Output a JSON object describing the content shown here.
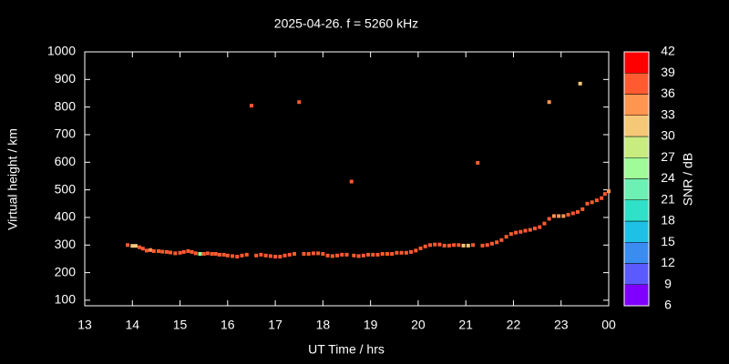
{
  "chart_data": {
    "type": "scatter",
    "title": "2025-04-26. f = 5260 kHz",
    "x_label": "UT Time / hrs",
    "y_label": "Virtual height / km",
    "xlim": [
      13,
      24
    ],
    "ylim": [
      80,
      1000
    ],
    "xticks": [
      13,
      14,
      15,
      16,
      17,
      18,
      19,
      20,
      21,
      22,
      23,
      {
        "value": 24,
        "label": "00"
      }
    ],
    "yticks": [
      100,
      200,
      300,
      400,
      500,
      600,
      700,
      800,
      900,
      1000
    ],
    "colorbar": {
      "label": "SNR / dB",
      "ticks": [
        6,
        9,
        12,
        15,
        18,
        21,
        24,
        27,
        30,
        33,
        36,
        39,
        42
      ],
      "colors": [
        "#8000ff",
        "#5a5aff",
        "#3a8cf0",
        "#1ec0e6",
        "#30e0c8",
        "#6cf0b4",
        "#a0fc98",
        "#c8ec80",
        "#f5c878",
        "#ff9650",
        "#ff5a30",
        "#ff0000"
      ]
    },
    "series": [
      {
        "name": "SNR",
        "x": [
          13.9,
          14.0,
          14.07,
          14.15,
          14.22,
          14.3,
          14.38,
          14.45,
          14.55,
          14.63,
          14.72,
          14.8,
          14.9,
          15.0,
          15.08,
          15.17,
          15.25,
          15.33,
          15.42,
          15.5,
          15.58,
          15.67,
          15.75,
          15.83,
          15.92,
          16.0,
          16.1,
          16.2,
          16.3,
          16.4,
          16.6,
          16.7,
          16.8,
          16.9,
          17.0,
          17.1,
          17.2,
          17.3,
          17.4,
          17.6,
          17.7,
          17.8,
          17.9,
          18.0,
          18.1,
          18.2,
          18.3,
          18.4,
          18.5,
          18.65,
          18.75,
          18.85,
          18.95,
          19.05,
          19.15,
          19.25,
          19.35,
          19.45,
          19.55,
          19.65,
          19.75,
          19.85,
          19.95,
          20.05,
          20.15,
          20.25,
          20.35,
          20.45,
          20.55,
          20.65,
          20.75,
          20.85,
          20.95,
          21.05,
          21.15,
          21.35,
          21.45,
          21.55,
          21.65,
          21.75,
          21.85,
          21.95,
          22.05,
          22.15,
          22.25,
          22.35,
          22.45,
          22.55,
          22.65,
          22.75,
          22.85,
          22.95,
          23.05,
          23.15,
          23.25,
          23.35,
          23.45,
          23.55,
          23.65,
          23.75,
          23.85,
          23.92,
          24.0,
          16.5,
          17.5,
          18.6,
          21.25,
          22.75,
          23.4
        ],
        "values": [
          300,
          297,
          297,
          292,
          287,
          280,
          282,
          278,
          278,
          276,
          275,
          273,
          270,
          272,
          275,
          278,
          275,
          270,
          268,
          268,
          270,
          268,
          268,
          265,
          265,
          262,
          260,
          258,
          262,
          265,
          262,
          265,
          262,
          260,
          258,
          258,
          262,
          265,
          268,
          268,
          268,
          270,
          270,
          268,
          262,
          260,
          262,
          265,
          265,
          262,
          260,
          262,
          265,
          265,
          265,
          268,
          268,
          268,
          272,
          272,
          272,
          275,
          280,
          288,
          295,
          300,
          302,
          302,
          298,
          298,
          300,
          300,
          298,
          298,
          300,
          298,
          300,
          305,
          310,
          318,
          330,
          340,
          345,
          348,
          352,
          355,
          360,
          365,
          378,
          395,
          405,
          405,
          405,
          410,
          415,
          420,
          430,
          450,
          455,
          462,
          470,
          485,
          495,
          805,
          818,
          530,
          598,
          818,
          885
        ],
        "snr": [
          38,
          30,
          31,
          37,
          38,
          38,
          35,
          38,
          38,
          38,
          37,
          38,
          38,
          37,
          38,
          38,
          37,
          38,
          26,
          38,
          38,
          38,
          37,
          38,
          38,
          38,
          38,
          38,
          38,
          37,
          38,
          38,
          37,
          38,
          38,
          38,
          38,
          37,
          38,
          38,
          38,
          38,
          37,
          38,
          38,
          38,
          38,
          38,
          37,
          38,
          38,
          38,
          38,
          37,
          38,
          38,
          38,
          38,
          38,
          38,
          38,
          37,
          38,
          38,
          38,
          37,
          38,
          38,
          38,
          37,
          38,
          38,
          31,
          30,
          38,
          38,
          38,
          38,
          37,
          38,
          38,
          38,
          38,
          38,
          38,
          38,
          38,
          38,
          38,
          38,
          33,
          33,
          33,
          38,
          38,
          38,
          38,
          38,
          38,
          38,
          38,
          38,
          33,
          38,
          38,
          38,
          38,
          33,
          32
        ]
      }
    ]
  }
}
